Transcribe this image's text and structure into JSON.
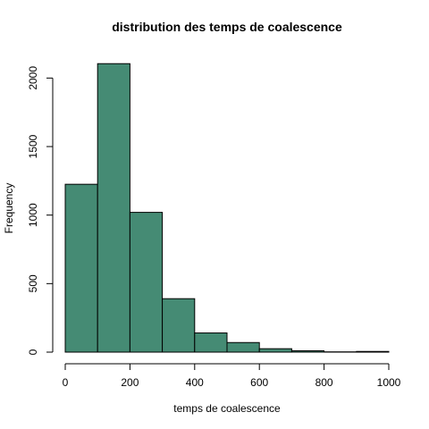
{
  "chart_data": {
    "type": "bar",
    "title": "distribution des temps de coalescence",
    "xlabel": "temps de coalescence",
    "ylabel": "Frequency",
    "bins": [
      [
        0,
        100
      ],
      [
        100,
        200
      ],
      [
        200,
        300
      ],
      [
        300,
        400
      ],
      [
        400,
        500
      ],
      [
        500,
        600
      ],
      [
        600,
        700
      ],
      [
        700,
        800
      ],
      [
        800,
        900
      ],
      [
        900,
        1000
      ]
    ],
    "values": [
      1225,
      2105,
      1020,
      390,
      140,
      70,
      25,
      10,
      2,
      5
    ],
    "xlim": [
      0,
      1000
    ],
    "ylim": [
      0,
      2100
    ],
    "x_ticks": [
      0,
      200,
      400,
      600,
      800,
      1000
    ],
    "y_ticks": [
      0,
      500,
      1000,
      1500,
      2000
    ],
    "x_tick_labels": [
      "0",
      "200",
      "400",
      "600",
      "800",
      "1000"
    ],
    "y_tick_labels": [
      "0",
      "500",
      "1000",
      "1500",
      "2000"
    ],
    "grid": false,
    "bar_fill": "#458B74",
    "bar_stroke": "#000000"
  }
}
